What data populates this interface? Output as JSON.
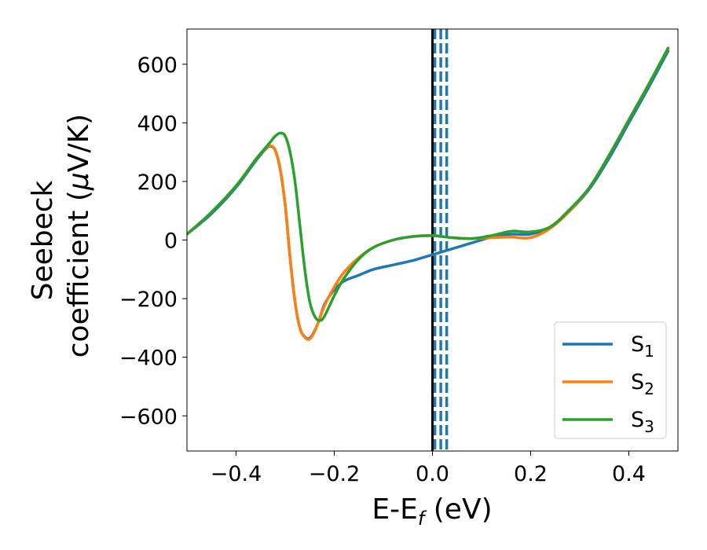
{
  "chart_data": {
    "type": "line",
    "title": "",
    "xlabel": {
      "main": "E-E",
      "sub": "f",
      "suffix": " (eV)"
    },
    "ylabel": {
      "line1": "Seebeck",
      "line2_pre": "coefficient  (",
      "mu": "μ",
      "line2_post": "V/K)"
    },
    "xlim": [
      -0.5,
      0.5
    ],
    "ylim": [
      -720,
      720
    ],
    "xticks": [
      -0.4,
      -0.2,
      0.0,
      0.2,
      0.4
    ],
    "xtick_labels": [
      "−0.4",
      "−0.2",
      "0.0",
      "0.2",
      "0.4"
    ],
    "yticks": [
      -600,
      -400,
      -200,
      0,
      200,
      400,
      600
    ],
    "ytick_labels": [
      "−600",
      "−400",
      "−200",
      "0",
      "200",
      "400",
      "600"
    ],
    "grid": false,
    "legend_position": "bottom-right",
    "vline_solid": {
      "x": 0.0,
      "color": "#000000"
    },
    "vlines_dashed": {
      "x": [
        0.005,
        0.017,
        0.029
      ],
      "color": "#1f77b4"
    },
    "series": [
      {
        "name": "S",
        "subscript": "1",
        "color": "#1f77b4",
        "x": [
          -0.5,
          -0.45,
          -0.4,
          -0.36,
          -0.34,
          -0.33,
          -0.32,
          -0.31,
          -0.3,
          -0.29,
          -0.28,
          -0.27,
          -0.26,
          -0.25,
          -0.24,
          -0.23,
          -0.22,
          -0.2,
          -0.18,
          -0.15,
          -0.12,
          -0.08,
          -0.04,
          0.0,
          0.04,
          0.08,
          0.12,
          0.16,
          0.2,
          0.24,
          0.28,
          0.32,
          0.36,
          0.4,
          0.44,
          0.48
        ],
        "y": [
          20,
          90,
          180,
          270,
          310,
          320,
          305,
          240,
          120,
          -60,
          -210,
          -300,
          -330,
          -335,
          -310,
          -270,
          -220,
          -170,
          -140,
          -120,
          -100,
          -85,
          -70,
          -50,
          -30,
          -10,
          10,
          20,
          20,
          45,
          100,
          175,
          280,
          400,
          520,
          645
        ]
      },
      {
        "name": "S",
        "subscript": "2",
        "color": "#ff7f0e",
        "x": [
          -0.5,
          -0.45,
          -0.4,
          -0.36,
          -0.34,
          -0.33,
          -0.32,
          -0.31,
          -0.3,
          -0.29,
          -0.28,
          -0.27,
          -0.26,
          -0.25,
          -0.24,
          -0.23,
          -0.22,
          -0.2,
          -0.18,
          -0.15,
          -0.12,
          -0.08,
          -0.04,
          0.0,
          0.04,
          0.08,
          0.12,
          0.16,
          0.2,
          0.24,
          0.28,
          0.32,
          0.36,
          0.4,
          0.44,
          0.48
        ],
        "y": [
          20,
          95,
          185,
          275,
          312,
          322,
          306,
          242,
          122,
          -58,
          -210,
          -300,
          -332,
          -338,
          -312,
          -270,
          -225,
          -160,
          -110,
          -60,
          -25,
          0,
          12,
          15,
          8,
          5,
          8,
          10,
          8,
          40,
          100,
          180,
          290,
          410,
          530,
          655
        ]
      },
      {
        "name": "S",
        "subscript": "3",
        "color": "#2ca02c",
        "x": [
          -0.5,
          -0.45,
          -0.4,
          -0.36,
          -0.34,
          -0.33,
          -0.32,
          -0.31,
          -0.3,
          -0.29,
          -0.28,
          -0.27,
          -0.26,
          -0.25,
          -0.24,
          -0.23,
          -0.22,
          -0.2,
          -0.18,
          -0.15,
          -0.12,
          -0.08,
          -0.04,
          0.0,
          0.04,
          0.08,
          0.12,
          0.16,
          0.2,
          0.24,
          0.28,
          0.32,
          0.36,
          0.4,
          0.44,
          0.48
        ],
        "y": [
          20,
          95,
          185,
          275,
          315,
          335,
          355,
          365,
          355,
          300,
          200,
          50,
          -100,
          -210,
          -260,
          -275,
          -260,
          -190,
          -130,
          -65,
          -25,
          0,
          12,
          15,
          8,
          5,
          15,
          30,
          28,
          45,
          105,
          180,
          290,
          410,
          530,
          655
        ]
      }
    ]
  }
}
